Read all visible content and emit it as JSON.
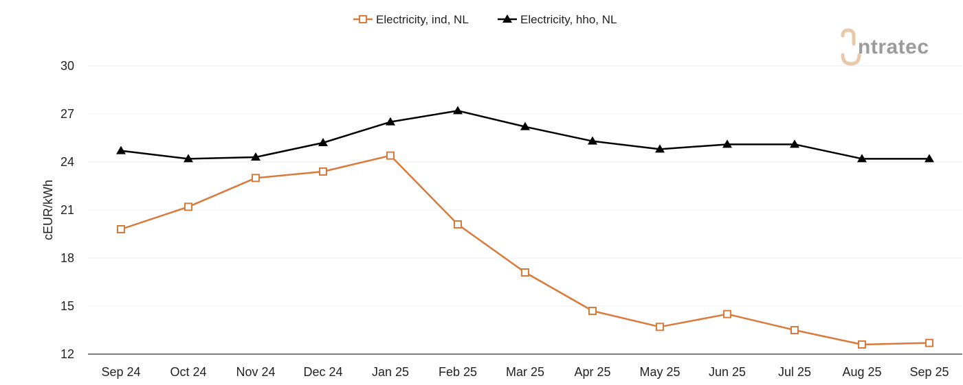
{
  "chart_data": {
    "type": "line",
    "categories": [
      "Sep 24",
      "Oct 24",
      "Nov 24",
      "Dec 24",
      "Jan 25",
      "Feb 25",
      "Mar 25",
      "Apr 25",
      "May 25",
      "Jun 25",
      "Jul 25",
      "Aug 25",
      "Sep 25"
    ],
    "series": [
      {
        "name": "Electricity, ind, NL",
        "color": "#d97a3a",
        "marker": "square-open",
        "values": [
          19.8,
          21.2,
          23.0,
          23.4,
          24.4,
          20.1,
          17.1,
          14.7,
          13.7,
          14.5,
          13.5,
          12.6,
          12.7
        ]
      },
      {
        "name": "Electricity, hho, NL",
        "color": "#000000",
        "marker": "triangle",
        "values": [
          24.7,
          24.2,
          24.3,
          25.2,
          26.5,
          27.2,
          26.2,
          25.3,
          24.8,
          25.1,
          25.1,
          24.2,
          24.2
        ]
      }
    ],
    "title": "",
    "xlabel": "",
    "ylabel": "cEUR/kWh",
    "ylim": [
      12,
      30
    ],
    "yticks": [
      12,
      15,
      18,
      21,
      24,
      27,
      30
    ],
    "grid": "horizontal",
    "legend_position": "top-center"
  },
  "logo": {
    "text": "intratec",
    "letter_color": "#e8c8a8",
    "text_color": "#9b9b9b"
  }
}
